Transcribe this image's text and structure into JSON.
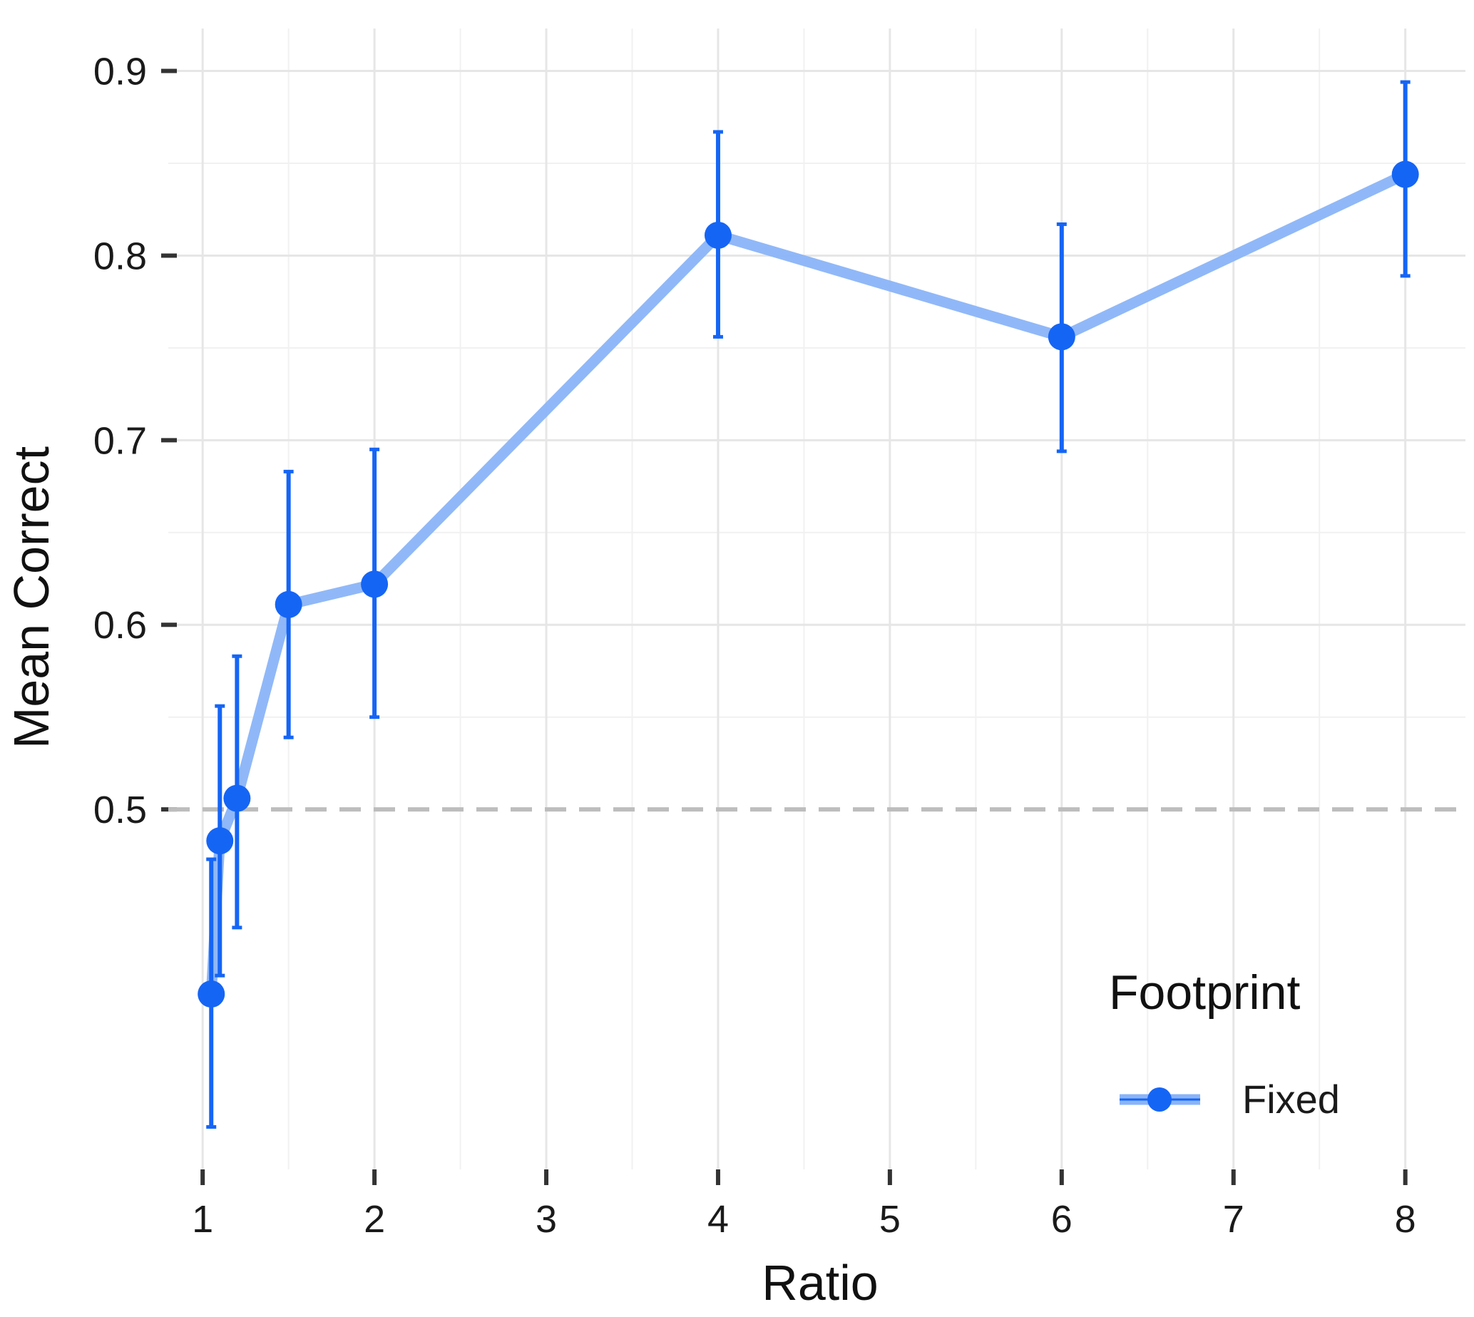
{
  "chart_data": {
    "type": "line",
    "title": "",
    "xlabel": "Ratio",
    "ylabel": "Mean Correct",
    "xlim": [
      0.8,
      8.35
    ],
    "ylim": [
      0.305,
      0.923
    ],
    "x_ticks": [
      1,
      2,
      3,
      4,
      5,
      6,
      7,
      8
    ],
    "x_tick_labels": [
      "1",
      "2",
      "3",
      "4",
      "5",
      "6",
      "7",
      "8"
    ],
    "y_ticks": [
      0.5,
      0.6,
      0.7,
      0.8,
      0.9
    ],
    "y_tick_labels": [
      "0.5",
      "0.6",
      "0.7",
      "0.8",
      "0.9"
    ],
    "grid": true,
    "reference_line": {
      "y": 0.5,
      "style": "dashed"
    },
    "legend": {
      "title": "Footprint",
      "position": "bottom-right"
    },
    "series": [
      {
        "name": "Fixed",
        "color": "#1565f5",
        "line_color": "#8ab4f8",
        "points": [
          {
            "x": 1.05,
            "y": 0.4,
            "lo": 0.328,
            "hi": 0.473
          },
          {
            "x": 1.1,
            "y": 0.483,
            "lo": 0.41,
            "hi": 0.556
          },
          {
            "x": 1.2,
            "y": 0.506,
            "lo": 0.436,
            "hi": 0.583
          },
          {
            "x": 1.5,
            "y": 0.611,
            "lo": 0.539,
            "hi": 0.683
          },
          {
            "x": 2.0,
            "y": 0.622,
            "lo": 0.55,
            "hi": 0.695
          },
          {
            "x": 4.0,
            "y": 0.811,
            "lo": 0.756,
            "hi": 0.867
          },
          {
            "x": 6.0,
            "y": 0.756,
            "lo": 0.694,
            "hi": 0.817
          },
          {
            "x": 8.0,
            "y": 0.844,
            "lo": 0.789,
            "hi": 0.894
          }
        ]
      }
    ]
  }
}
